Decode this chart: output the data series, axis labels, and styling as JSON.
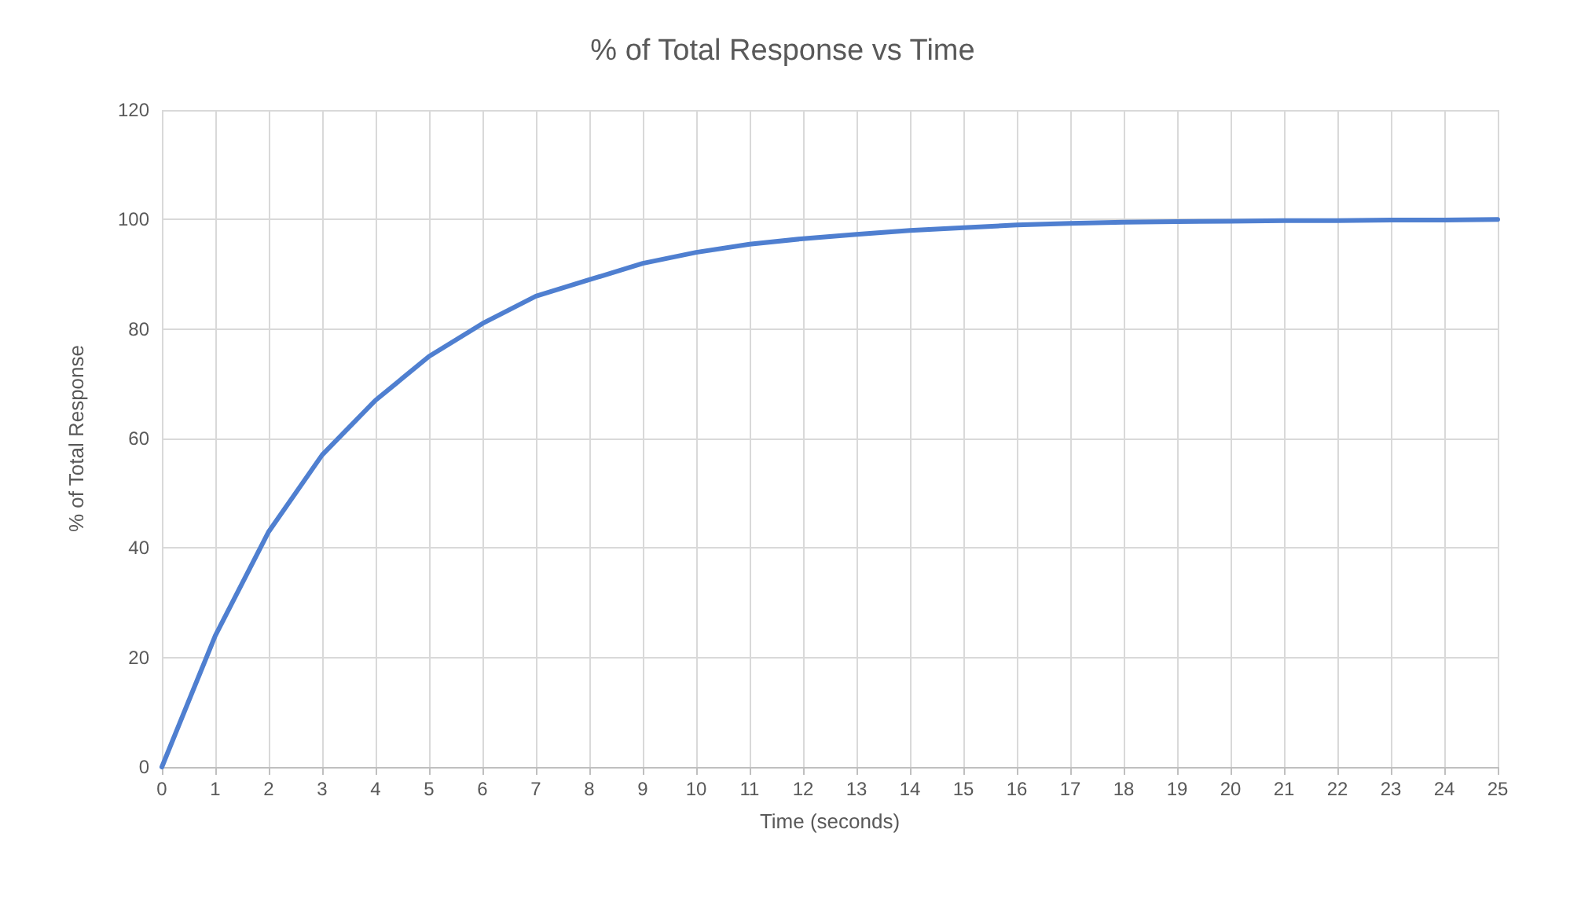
{
  "chart_data": {
    "type": "line",
    "title": "% of Total Response vs Time",
    "xlabel": "Time (seconds)",
    "ylabel": "% of Total Response",
    "x": [
      0,
      1,
      2,
      3,
      4,
      5,
      6,
      7,
      8,
      9,
      10,
      11,
      12,
      13,
      14,
      15,
      16,
      17,
      18,
      19,
      20,
      21,
      22,
      23,
      24,
      25
    ],
    "series": [
      {
        "color": "#4f7fd0",
        "values": [
          0,
          24,
          43,
          57,
          67,
          75,
          81,
          86,
          89,
          92,
          94,
          95.5,
          96.5,
          97.3,
          98,
          98.5,
          99,
          99.3,
          99.5,
          99.6,
          99.7,
          99.8,
          99.8,
          99.9,
          99.9,
          100
        ]
      }
    ],
    "xlim": [
      0,
      25
    ],
    "xticks": [
      0,
      1,
      2,
      3,
      4,
      5,
      6,
      7,
      8,
      9,
      10,
      11,
      12,
      13,
      14,
      15,
      16,
      17,
      18,
      19,
      20,
      21,
      22,
      23,
      24,
      25
    ],
    "ylim": [
      0,
      120
    ],
    "yticks": [
      0,
      20,
      40,
      60,
      80,
      100,
      120
    ],
    "grid": true,
    "marker": "none",
    "line_style": "solid"
  }
}
